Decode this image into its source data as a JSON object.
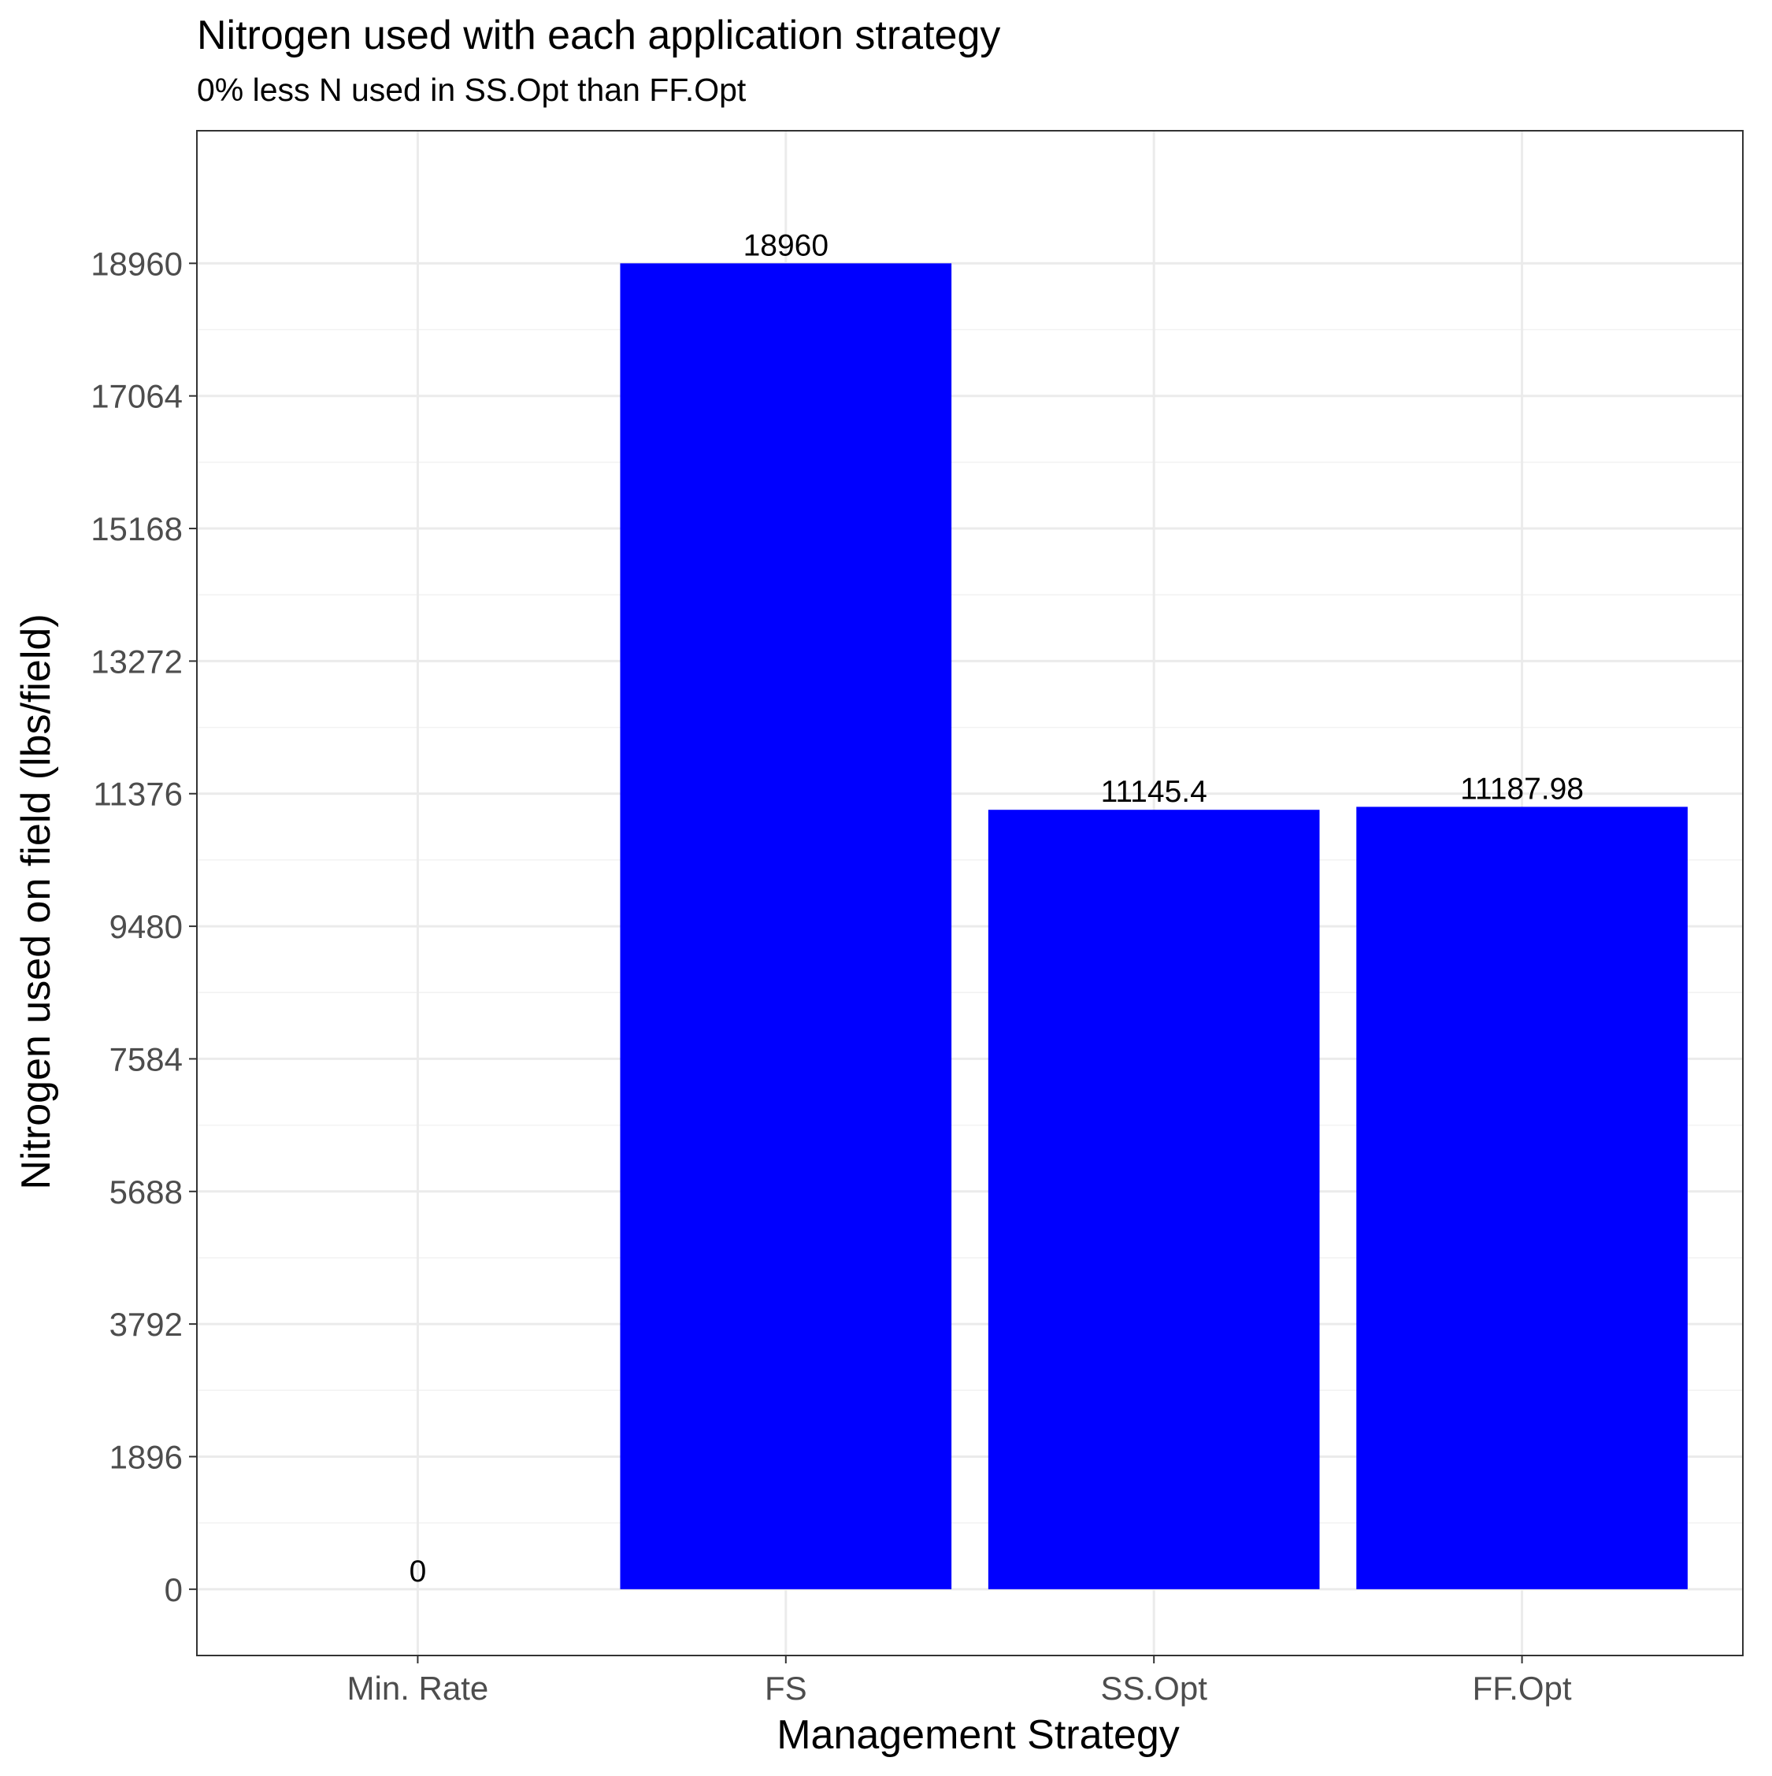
{
  "chart_data": {
    "type": "bar",
    "title": "Nitrogen used with each application strategy",
    "subtitle": "0% less N used in SS.Opt than FF.Opt",
    "xlabel": "Management Strategy",
    "ylabel": "Nitrogen used on field (lbs/field)",
    "categories": [
      "Min. Rate",
      "FS",
      "SS.Opt",
      "FF.Opt"
    ],
    "values": [
      0,
      18960,
      11145.4,
      11187.98
    ],
    "value_labels": [
      "0",
      "18960",
      "11145.4",
      "11187.98"
    ],
    "yticks": [
      0,
      1896,
      3792,
      5688,
      7584,
      9480,
      11376,
      13272,
      15168,
      17064,
      18960
    ],
    "ylim": [
      -948,
      20856
    ],
    "grid": true,
    "legend": "none",
    "colors": {
      "bar": "#0000ff",
      "panel_border": "#333333",
      "grid_major": "#ebebeb",
      "grid_minor": "#f2f2f2",
      "tick_text": "#4d4d4d"
    }
  }
}
